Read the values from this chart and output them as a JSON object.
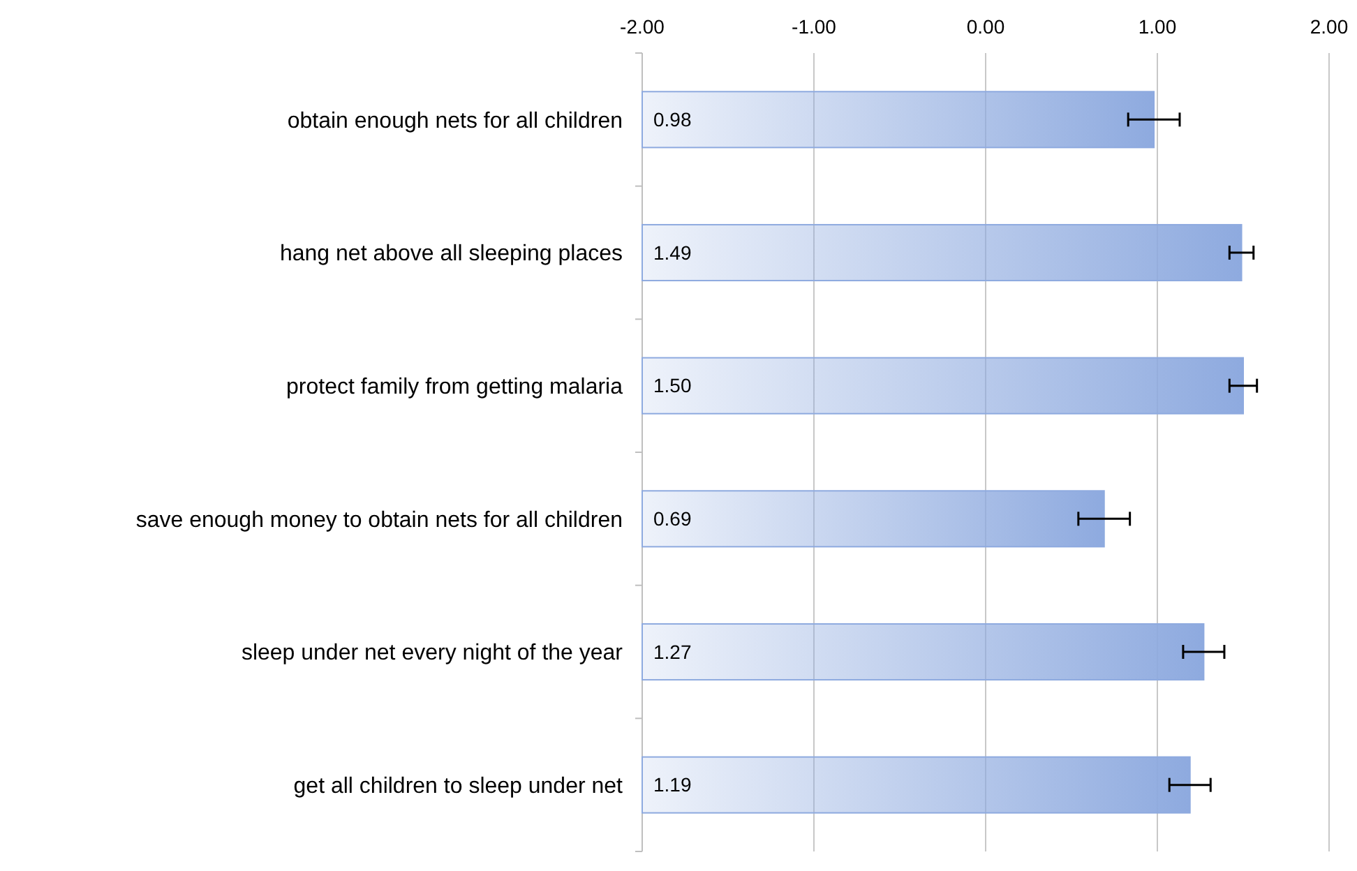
{
  "chart_data": {
    "type": "bar",
    "orientation": "horizontal",
    "categories": [
      "obtain enough nets for all children",
      "hang net above all sleeping places",
      "protect family from getting malaria",
      "save enough money to obtain nets for all children",
      "sleep under net every night of the year",
      "get all children to sleep under net"
    ],
    "base": [
      -2,
      -2,
      -2,
      -2,
      -2,
      -2
    ],
    "values": [
      2.98,
      3.49,
      3.5,
      2.69,
      3.27,
      3.19
    ],
    "value_labels": [
      "0.98",
      "1.49",
      "1.50",
      "0.69",
      "1.27",
      "1.19"
    ],
    "errors": [
      0.15,
      0.07,
      0.08,
      0.15,
      0.12,
      0.12
    ],
    "color": "#8eaadf",
    "xlim": [
      -2,
      2
    ],
    "xticks": [
      {
        "value": -2,
        "label": "-2.00"
      },
      {
        "value": -1,
        "label": "-1.00"
      },
      {
        "value": 0,
        "label": "0.00"
      },
      {
        "value": 1,
        "label": "1.00"
      },
      {
        "value": 2,
        "label": "2.00"
      }
    ],
    "grid": "x"
  }
}
